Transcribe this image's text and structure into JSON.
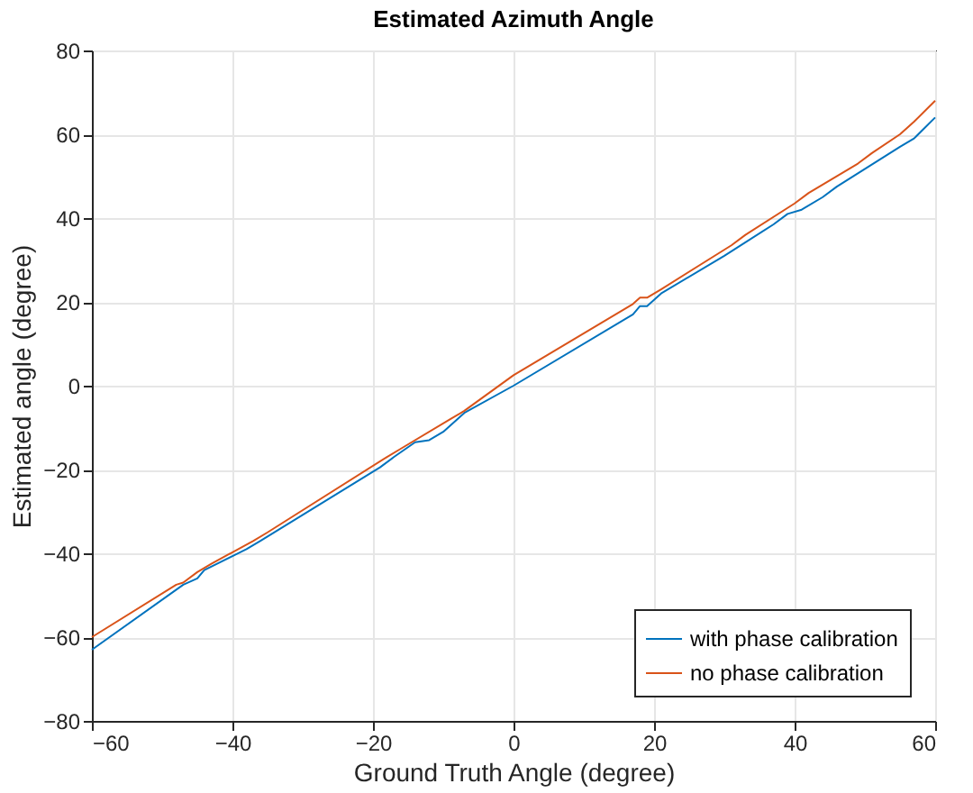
{
  "chart_data": {
    "type": "line",
    "title": "Estimated Azimuth Angle",
    "xlabel": "Ground Truth Angle (degree)",
    "ylabel": "Estimated angle (degree)",
    "xlim": [
      -60,
      60
    ],
    "ylim": [
      -80,
      80
    ],
    "xticks": [
      -60,
      -40,
      -20,
      0,
      20,
      40,
      60
    ],
    "yticks": [
      -80,
      -60,
      -40,
      -20,
      0,
      20,
      40,
      60,
      80
    ],
    "grid": true,
    "legend": "bottom right",
    "series": [
      {
        "name": "with phase calibration",
        "color": "#0072bd",
        "x": [
          -60,
          -47,
          -45,
          -44,
          -38,
          -36,
          -19,
          -17,
          -14,
          -12,
          -10,
          -8,
          -7,
          0,
          17,
          18,
          19,
          21,
          30,
          37,
          39,
          41,
          44,
          46,
          55,
          57,
          60
        ],
        "values": [
          -63,
          -47.5,
          -46,
          -44,
          -39,
          -37,
          -19.5,
          -17,
          -13.5,
          -13,
          -11,
          -8,
          -6.5,
          0,
          17,
          19,
          19,
          22,
          31,
          38.5,
          41,
          42,
          45,
          47.5,
          57,
          59,
          64
        ]
      },
      {
        "name": "no phase calibration",
        "color": "#d95319",
        "x": [
          -60,
          -48,
          -47,
          -45,
          -43,
          -37,
          -35,
          -18,
          -16,
          -9,
          -7,
          0,
          17,
          18,
          19,
          21,
          31,
          33,
          40,
          42,
          49,
          51,
          55,
          57,
          60
        ],
        "values": [
          -60,
          -47.5,
          -47,
          -44.5,
          -42.5,
          -37,
          -35,
          -17,
          -15,
          -8,
          -6,
          2.5,
          19.5,
          21,
          21,
          23,
          33.5,
          36,
          43.5,
          46,
          53,
          55.5,
          60,
          63,
          68
        ]
      }
    ]
  }
}
